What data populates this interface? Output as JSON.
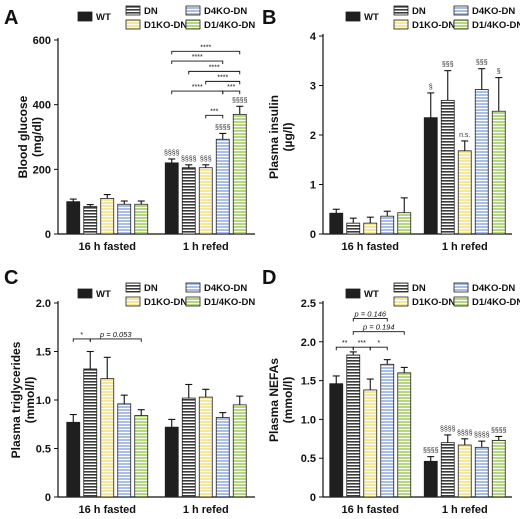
{
  "figure": {
    "series_colors": {
      "WT": "#1f1f1f",
      "DN": "#ffffff",
      "D4KO-DN": "#a9bfe6",
      "D1KO-DN": "#f6e79a",
      "D1/4KO-DN": "#b5d77f"
    },
    "series_patterns": {
      "WT": "solid",
      "DN": "hstripe-dark",
      "D4KO-DN": "hstripe-blue",
      "D1KO-DN": "hstripe-yellow",
      "D1/4KO-DN": "hstripe-green"
    }
  },
  "chart_data": [
    {
      "panel": "A",
      "type": "bar",
      "ylabel": "Blood glucose\n(mg/dl)",
      "ylim": [
        0,
        600
      ],
      "yticks": [
        0,
        200,
        400,
        600
      ],
      "categories": [
        "16 h fasted",
        "1 h refed"
      ],
      "legend": [
        {
          "name": "WT",
          "series": "WT"
        },
        {
          "name": "DN",
          "series": "DN"
        },
        {
          "name": "D4KO-DN",
          "series": "D4KO-DN"
        },
        {
          "name": "D1KO-DN",
          "series": "D1KO-DN"
        },
        {
          "name": "D1/4KO-DN",
          "series": "D1/4KO-DN"
        }
      ],
      "series": [
        {
          "name": "WT",
          "values": [
            100,
            220
          ],
          "errors": [
            8,
            12
          ]
        },
        {
          "name": "DN",
          "values": [
            85,
            205
          ],
          "errors": [
            6,
            9
          ]
        },
        {
          "name": "D1KO-DN",
          "values": [
            110,
            205
          ],
          "errors": [
            12,
            9
          ]
        },
        {
          "name": "D4KO-DN",
          "values": [
            92,
            293
          ],
          "errors": [
            10,
            18
          ]
        },
        {
          "name": "D1/4KO-DN",
          "values": [
            92,
            370
          ],
          "errors": [
            10,
            25
          ]
        }
      ],
      "bar_labels": [
        {
          "group": 1,
          "bar": 0,
          "text": "§§§§"
        },
        {
          "group": 1,
          "bar": 1,
          "text": "§§§§"
        },
        {
          "group": 1,
          "bar": 2,
          "text": "§§§"
        },
        {
          "group": 1,
          "bar": 3,
          "text": "§§§§"
        },
        {
          "group": 1,
          "bar": 4,
          "text": "§§§§"
        }
      ],
      "brackets": [
        {
          "group": 1,
          "from": 0,
          "to": 4,
          "y": 565,
          "text": "****"
        },
        {
          "group": 1,
          "from": 0,
          "to": 3,
          "y": 535,
          "text": "****"
        },
        {
          "group": 1,
          "from": 1,
          "to": 4,
          "y": 503,
          "text": "****"
        },
        {
          "group": 1,
          "from": 2,
          "to": 4,
          "y": 472,
          "text": "****"
        },
        {
          "group": 1,
          "from": 0,
          "to": 3,
          "y": 442,
          "text": "****"
        },
        {
          "group": 1,
          "from": 3,
          "to": 4,
          "y": 442,
          "text": "***"
        },
        {
          "group": 1,
          "from": 2,
          "to": 3,
          "y": 367,
          "text": "***"
        }
      ]
    },
    {
      "panel": "B",
      "type": "bar",
      "ylabel": "Plasma insulin\n(µg/l)",
      "ylim": [
        0,
        4
      ],
      "yticks": [
        0,
        1,
        2,
        3,
        4
      ],
      "categories": [
        "16 h fasted",
        "1 h refed"
      ],
      "legend": [
        {
          "name": "WT",
          "series": "WT"
        },
        {
          "name": "DN",
          "series": "DN"
        },
        {
          "name": "D4KO-DN",
          "series": "D4KO-DN"
        },
        {
          "name": "D1KO-DN",
          "series": "D1KO-DN"
        },
        {
          "name": "D1/4KO-DN",
          "series": "D1/4KO-DN"
        }
      ],
      "series": [
        {
          "name": "WT",
          "values": [
            0.42,
            2.35
          ],
          "errors": [
            0.08,
            0.5
          ]
        },
        {
          "name": "DN",
          "values": [
            0.22,
            2.7
          ],
          "errors": [
            0.1,
            0.6
          ]
        },
        {
          "name": "D1KO-DN",
          "values": [
            0.22,
            1.68
          ],
          "errors": [
            0.12,
            0.2
          ]
        },
        {
          "name": "D4KO-DN",
          "values": [
            0.36,
            2.92
          ],
          "errors": [
            0.1,
            0.42
          ]
        },
        {
          "name": "D1/4KO-DN",
          "values": [
            0.43,
            2.48
          ],
          "errors": [
            0.3,
            0.68
          ]
        }
      ],
      "bar_labels": [
        {
          "group": 1,
          "bar": 0,
          "text": "§"
        },
        {
          "group": 1,
          "bar": 1,
          "text": "§§§"
        },
        {
          "group": 1,
          "bar": 2,
          "text": "n.s."
        },
        {
          "group": 1,
          "bar": 3,
          "text": "§§§"
        },
        {
          "group": 1,
          "bar": 4,
          "text": "§"
        }
      ],
      "brackets": []
    },
    {
      "panel": "C",
      "type": "bar",
      "ylabel": "Plasma triglycerides\n(mmol/l)",
      "ylim": [
        0,
        2.0
      ],
      "yticks": [
        "0",
        "0.5",
        "1.0",
        "1.5",
        "2.0"
      ],
      "ytick_values": [
        0,
        0.5,
        1.0,
        1.5,
        2.0
      ],
      "categories": [
        "16 h fasted",
        "1 h refed"
      ],
      "legend": [
        {
          "name": "WT",
          "series": "WT"
        },
        {
          "name": "DN",
          "series": "DN"
        },
        {
          "name": "D4KO-DN",
          "series": "D4KO-DN"
        },
        {
          "name": "D1KO-DN",
          "series": "D1KO-DN"
        },
        {
          "name": "D1/4KO-DN",
          "series": "D1/4KO-DN"
        }
      ],
      "series": [
        {
          "name": "WT",
          "values": [
            0.77,
            0.72
          ],
          "errors": [
            0.08,
            0.08
          ]
        },
        {
          "name": "DN",
          "values": [
            1.32,
            1.02
          ],
          "errors": [
            0.18,
            0.14
          ]
        },
        {
          "name": "D1KO-DN",
          "values": [
            1.22,
            1.03
          ],
          "errors": [
            0.22,
            0.08
          ]
        },
        {
          "name": "D4KO-DN",
          "values": [
            0.96,
            0.82
          ],
          "errors": [
            0.09,
            0.05
          ]
        },
        {
          "name": "D1/4KO-DN",
          "values": [
            0.84,
            0.95
          ],
          "errors": [
            0.06,
            0.09
          ]
        }
      ],
      "bar_labels": [],
      "brackets": [
        {
          "group": 0,
          "from": 0,
          "to": 1,
          "y": 1.63,
          "text": "*"
        },
        {
          "group": 0,
          "from": 1,
          "to": 4,
          "y": 1.63,
          "text": "p = 0.053",
          "italic": true
        }
      ]
    },
    {
      "panel": "D",
      "type": "bar",
      "ylabel": "Plasma NEFAs\n(mmol/l)",
      "ylim": [
        0,
        2.5
      ],
      "yticks": [
        "0",
        "0.5",
        "1.0",
        "1.5",
        "2.0",
        "2.5"
      ],
      "ytick_values": [
        0,
        0.5,
        1.0,
        1.5,
        2.0,
        2.5
      ],
      "categories": [
        "16 h fasted",
        "1 h refed"
      ],
      "legend": [
        {
          "name": "WT",
          "series": "WT"
        },
        {
          "name": "DN",
          "series": "DN"
        },
        {
          "name": "D4KO-DN",
          "series": "D4KO-DN"
        },
        {
          "name": "D1KO-DN",
          "series": "D1KO-DN"
        },
        {
          "name": "D1/4KO-DN",
          "series": "D1/4KO-DN"
        }
      ],
      "series": [
        {
          "name": "WT",
          "values": [
            1.46,
            0.46
          ],
          "errors": [
            0.1,
            0.06
          ]
        },
        {
          "name": "DN",
          "values": [
            1.83,
            0.7
          ],
          "errors": [
            0.04,
            0.1
          ]
        },
        {
          "name": "D1KO-DN",
          "values": [
            1.38,
            0.67
          ],
          "errors": [
            0.14,
            0.08
          ]
        },
        {
          "name": "D4KO-DN",
          "values": [
            1.71,
            0.64
          ],
          "errors": [
            0.06,
            0.08
          ]
        },
        {
          "name": "D1/4KO-DN",
          "values": [
            1.6,
            0.73
          ],
          "errors": [
            0.07,
            0.05
          ]
        }
      ],
      "bar_labels": [
        {
          "group": 1,
          "bar": 0,
          "text": "§§§§"
        },
        {
          "group": 1,
          "bar": 1,
          "text": "§§§§"
        },
        {
          "group": 1,
          "bar": 2,
          "text": "§§§§"
        },
        {
          "group": 1,
          "bar": 3,
          "text": "§§§§"
        },
        {
          "group": 1,
          "bar": 4,
          "text": "§§§§"
        }
      ],
      "brackets": [
        {
          "group": 0,
          "from": 1,
          "to": 3,
          "y": 2.3,
          "text": "p = 0.146",
          "italic": true
        },
        {
          "group": 0,
          "from": 1,
          "to": 4,
          "y": 2.13,
          "text": "p = 0.194",
          "italic": true
        },
        {
          "group": 0,
          "from": 0,
          "to": 1,
          "y": 1.93,
          "text": "**"
        },
        {
          "group": 0,
          "from": 1,
          "to": 2,
          "y": 1.93,
          "text": "***"
        },
        {
          "group": 0,
          "from": 2,
          "to": 3,
          "y": 1.93,
          "text": "*"
        }
      ]
    }
  ]
}
